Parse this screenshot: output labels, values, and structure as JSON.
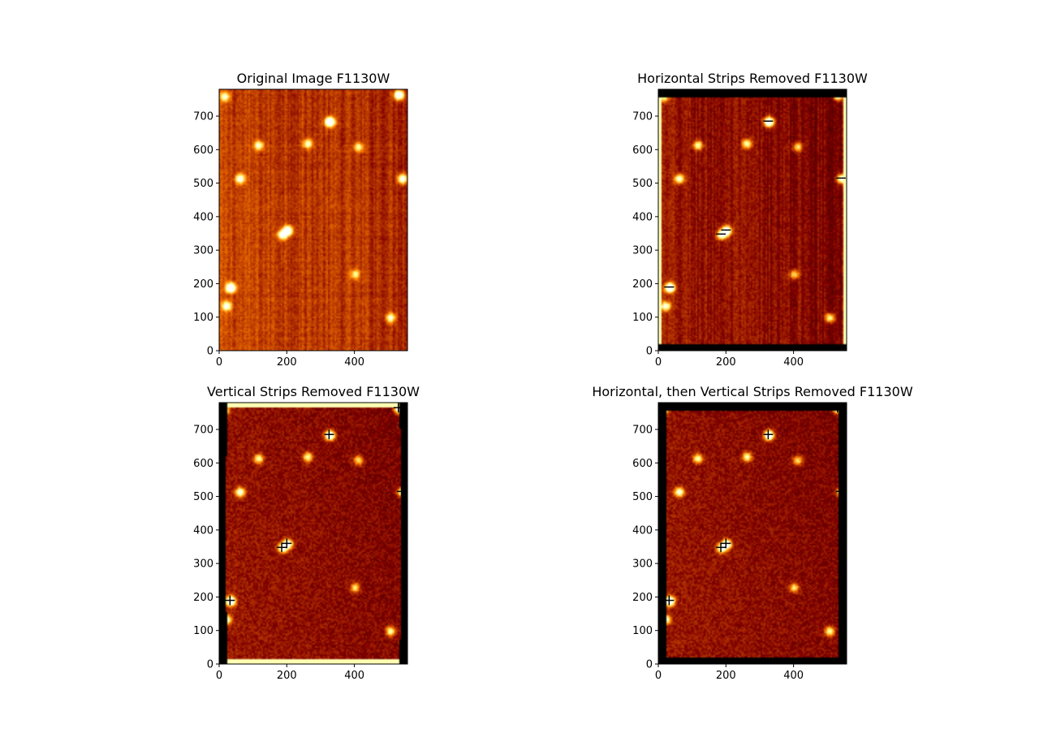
{
  "chart_data": [
    {
      "type": "heatmap",
      "title": "Original Image F1130W",
      "colormap": "afmhot",
      "variant": "original",
      "xlim": [
        0,
        557
      ],
      "ylim": [
        0,
        780
      ],
      "xticks": [
        0,
        200,
        400
      ],
      "yticks": [
        0,
        100,
        200,
        300,
        400,
        500,
        600,
        700
      ],
      "sources": [
        {
          "x": 325,
          "y": 685,
          "strength": 1.0
        },
        {
          "x": 200,
          "y": 360,
          "strength": 0.9
        },
        {
          "x": 185,
          "y": 348,
          "strength": 0.7
        },
        {
          "x": 32,
          "y": 190,
          "strength": 1.0
        },
        {
          "x": 530,
          "y": 765,
          "strength": 0.9
        },
        {
          "x": 540,
          "y": 515,
          "strength": 0.7
        },
        {
          "x": 60,
          "y": 515,
          "strength": 0.6
        },
        {
          "x": 260,
          "y": 620,
          "strength": 0.5
        },
        {
          "x": 115,
          "y": 615,
          "strength": 0.5
        },
        {
          "x": 410,
          "y": 610,
          "strength": 0.4
        },
        {
          "x": 20,
          "y": 135,
          "strength": 0.6
        },
        {
          "x": 505,
          "y": 100,
          "strength": 0.5
        },
        {
          "x": 15,
          "y": 760,
          "strength": 0.5
        },
        {
          "x": 400,
          "y": 230,
          "strength": 0.4
        }
      ]
    },
    {
      "type": "heatmap",
      "title": "Horizontal Strips Removed F1130W",
      "colormap": "afmhot",
      "variant": "horizontal",
      "xlim": [
        0,
        557
      ],
      "ylim": [
        0,
        780
      ],
      "xticks": [
        0,
        200,
        400
      ],
      "yticks": [
        0,
        100,
        200,
        300,
        400,
        500,
        600,
        700
      ],
      "sources": [
        {
          "x": 325,
          "y": 685,
          "strength": 1.0
        },
        {
          "x": 200,
          "y": 360,
          "strength": 0.9
        },
        {
          "x": 185,
          "y": 348,
          "strength": 0.7
        },
        {
          "x": 32,
          "y": 190,
          "strength": 1.0
        },
        {
          "x": 530,
          "y": 765,
          "strength": 0.9
        },
        {
          "x": 540,
          "y": 515,
          "strength": 0.7
        },
        {
          "x": 60,
          "y": 515,
          "strength": 0.6
        },
        {
          "x": 260,
          "y": 620,
          "strength": 0.5
        },
        {
          "x": 115,
          "y": 615,
          "strength": 0.5
        },
        {
          "x": 410,
          "y": 610,
          "strength": 0.4
        },
        {
          "x": 20,
          "y": 135,
          "strength": 0.6
        },
        {
          "x": 505,
          "y": 100,
          "strength": 0.5
        },
        {
          "x": 15,
          "y": 760,
          "strength": 0.5
        },
        {
          "x": 400,
          "y": 230,
          "strength": 0.4
        }
      ]
    },
    {
      "type": "heatmap",
      "title": "Vertical Strips Removed F1130W",
      "colormap": "afmhot",
      "variant": "vertical",
      "xlim": [
        0,
        557
      ],
      "ylim": [
        0,
        780
      ],
      "xticks": [
        0,
        200,
        400
      ],
      "yticks": [
        0,
        100,
        200,
        300,
        400,
        500,
        600,
        700
      ],
      "sources": [
        {
          "x": 325,
          "y": 685,
          "strength": 1.0
        },
        {
          "x": 200,
          "y": 360,
          "strength": 0.9
        },
        {
          "x": 185,
          "y": 348,
          "strength": 0.7
        },
        {
          "x": 32,
          "y": 190,
          "strength": 1.0
        },
        {
          "x": 530,
          "y": 765,
          "strength": 0.9
        },
        {
          "x": 540,
          "y": 515,
          "strength": 0.7
        },
        {
          "x": 60,
          "y": 515,
          "strength": 0.6
        },
        {
          "x": 260,
          "y": 620,
          "strength": 0.5
        },
        {
          "x": 115,
          "y": 615,
          "strength": 0.5
        },
        {
          "x": 410,
          "y": 610,
          "strength": 0.4
        },
        {
          "x": 20,
          "y": 135,
          "strength": 0.6
        },
        {
          "x": 505,
          "y": 100,
          "strength": 0.5
        },
        {
          "x": 15,
          "y": 760,
          "strength": 0.5
        },
        {
          "x": 400,
          "y": 230,
          "strength": 0.4
        }
      ]
    },
    {
      "type": "heatmap",
      "title": "Horizontal, then Vertical Strips Removed F1130W",
      "colormap": "afmhot",
      "variant": "both",
      "xlim": [
        0,
        557
      ],
      "ylim": [
        0,
        780
      ],
      "xticks": [
        0,
        200,
        400
      ],
      "yticks": [
        0,
        100,
        200,
        300,
        400,
        500,
        600,
        700
      ],
      "sources": [
        {
          "x": 325,
          "y": 685,
          "strength": 1.0
        },
        {
          "x": 200,
          "y": 360,
          "strength": 0.9
        },
        {
          "x": 185,
          "y": 348,
          "strength": 0.7
        },
        {
          "x": 32,
          "y": 190,
          "strength": 1.0
        },
        {
          "x": 530,
          "y": 765,
          "strength": 0.9
        },
        {
          "x": 540,
          "y": 515,
          "strength": 0.7
        },
        {
          "x": 60,
          "y": 515,
          "strength": 0.6
        },
        {
          "x": 260,
          "y": 620,
          "strength": 0.5
        },
        {
          "x": 115,
          "y": 615,
          "strength": 0.5
        },
        {
          "x": 410,
          "y": 610,
          "strength": 0.4
        },
        {
          "x": 20,
          "y": 135,
          "strength": 0.6
        },
        {
          "x": 505,
          "y": 100,
          "strength": 0.5
        },
        {
          "x": 15,
          "y": 760,
          "strength": 0.5
        },
        {
          "x": 400,
          "y": 230,
          "strength": 0.4
        }
      ]
    }
  ]
}
